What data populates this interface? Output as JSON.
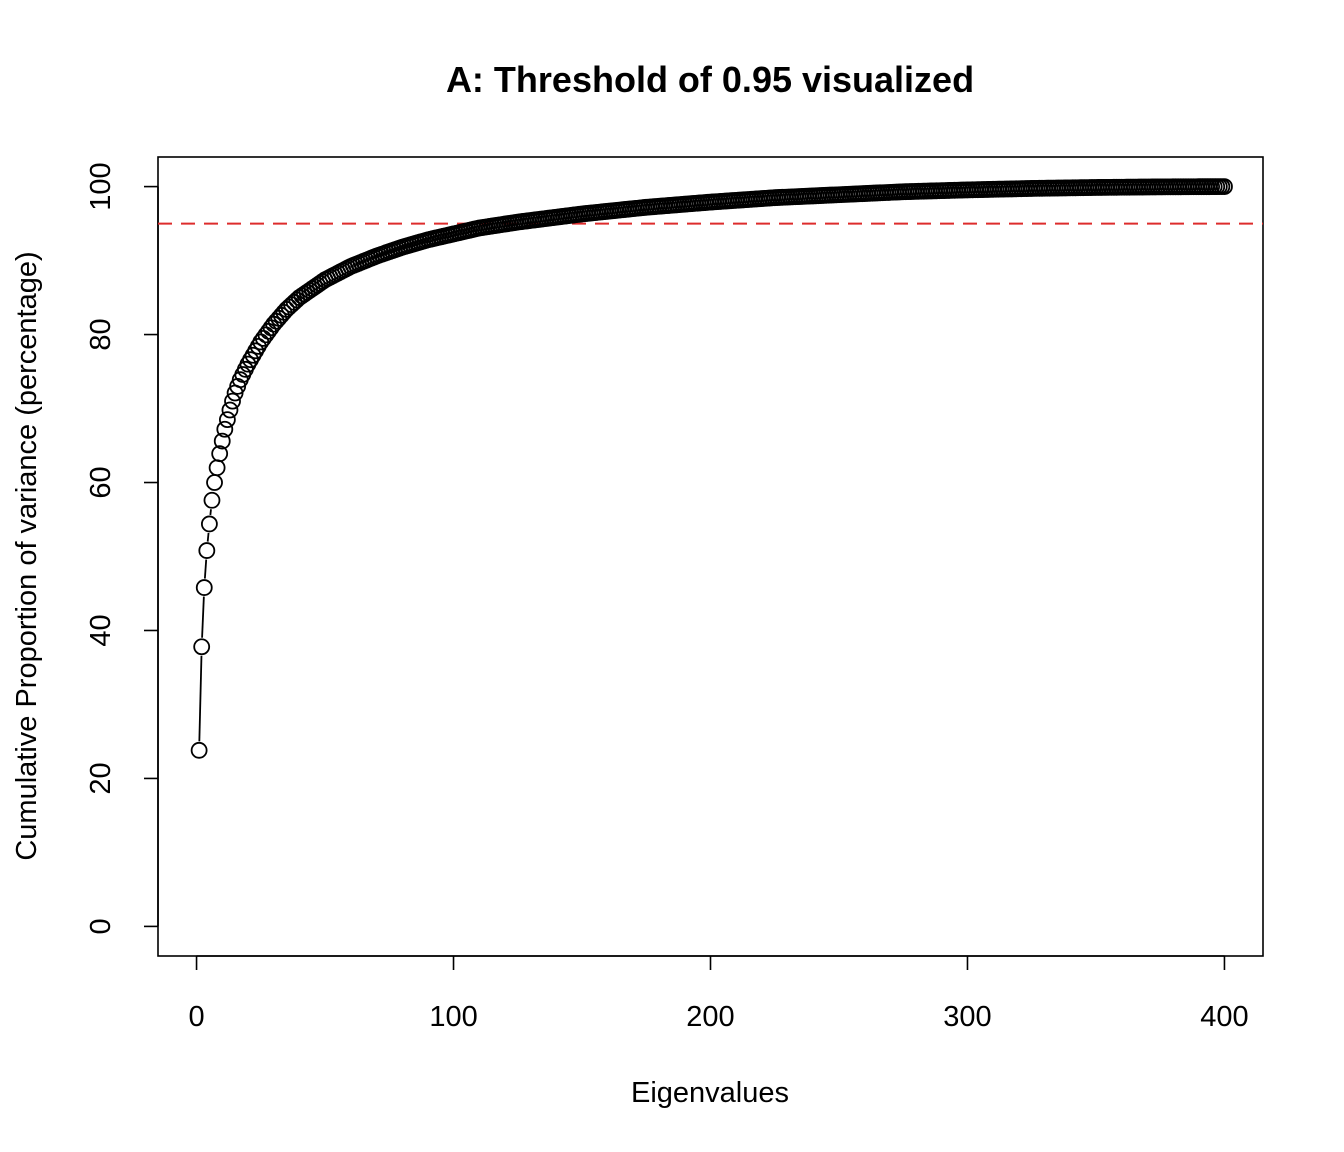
{
  "chart_data": {
    "type": "scatter",
    "title": "A: Threshold of 0.95 visualized",
    "xlabel": "Eigenvalues",
    "ylabel": "Cumulative Proportion of variance (percentage)",
    "xlim": [
      -15,
      415
    ],
    "ylim": [
      -4,
      104
    ],
    "x_ticks": [
      0,
      100,
      200,
      300,
      400
    ],
    "y_ticks": [
      0,
      20,
      40,
      60,
      80,
      100
    ],
    "x_tick_labels": [
      "0",
      "100",
      "200",
      "300",
      "400"
    ],
    "y_tick_labels": [
      "0",
      "20",
      "40",
      "60",
      "80",
      "100"
    ],
    "threshold": {
      "value": 95,
      "color": "#dd2c2c",
      "style": "dashed"
    },
    "series": [
      {
        "marker": "open-circle",
        "connected": true,
        "n_points": 400,
        "points": [
          [
            1,
            23.8
          ],
          [
            2,
            37.8
          ],
          [
            3,
            45.8
          ],
          [
            4,
            50.8
          ],
          [
            5,
            54.4
          ],
          [
            6,
            57.6
          ],
          [
            7,
            60.0
          ],
          [
            8,
            62.0
          ],
          [
            9,
            63.9
          ],
          [
            10,
            65.6
          ],
          [
            11,
            67.2
          ],
          [
            12,
            68.5
          ],
          [
            13,
            69.8
          ],
          [
            14,
            71.0
          ],
          [
            15,
            72.1
          ],
          [
            17,
            73.9
          ],
          [
            20,
            76.0
          ],
          [
            25,
            79.0
          ],
          [
            30,
            81.4
          ],
          [
            35,
            83.4
          ],
          [
            40,
            85.0
          ],
          [
            50,
            87.4
          ],
          [
            60,
            89.2
          ],
          [
            70,
            90.6
          ],
          [
            80,
            91.8
          ],
          [
            90,
            92.8
          ],
          [
            100,
            93.6
          ],
          [
            110,
            94.4
          ],
          [
            125,
            95.2
          ],
          [
            150,
            96.3
          ],
          [
            175,
            97.2
          ],
          [
            200,
            97.9
          ],
          [
            225,
            98.5
          ],
          [
            250,
            98.9
          ],
          [
            275,
            99.3
          ],
          [
            300,
            99.55
          ],
          [
            325,
            99.75
          ],
          [
            350,
            99.88
          ],
          [
            375,
            99.96
          ],
          [
            400,
            100
          ]
        ]
      }
    ]
  }
}
